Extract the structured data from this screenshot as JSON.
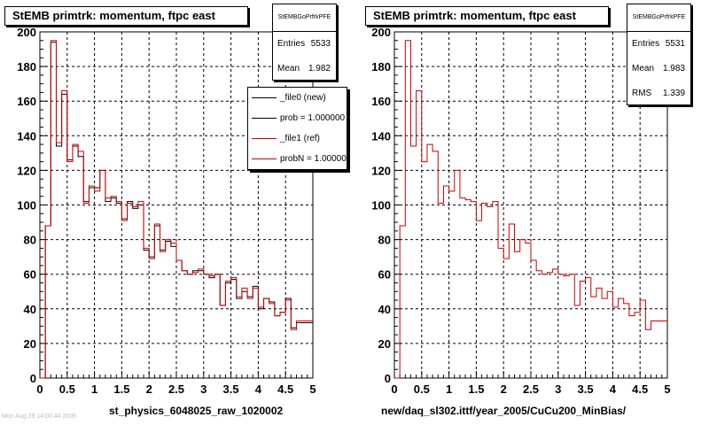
{
  "chart_data": [
    {
      "type": "histogram",
      "title": "StEMB primtrk: momentum, ftpc east",
      "xlabel": "st_physics_6048025_raw_1020002",
      "xlim": [
        0,
        5
      ],
      "ylim": [
        0,
        200
      ],
      "xticks": [
        "0",
        "0.5",
        "1",
        "1.5",
        "2",
        "2.5",
        "3",
        "3.5",
        "4",
        "4.5",
        "5"
      ],
      "yticks": [
        "0",
        "20",
        "40",
        "60",
        "80",
        "100",
        "120",
        "140",
        "160",
        "180",
        "200"
      ],
      "grid": true,
      "bin_edges": [
        0,
        0.1,
        0.2,
        0.3,
        0.4,
        0.5,
        0.6,
        0.7,
        0.8,
        0.9,
        1.0,
        1.1,
        1.2,
        1.3,
        1.4,
        1.5,
        1.6,
        1.7,
        1.8,
        1.9,
        2.0,
        2.1,
        2.2,
        2.3,
        2.4,
        2.5,
        2.6,
        2.7,
        2.8,
        2.9,
        3.0,
        3.1,
        3.2,
        3.3,
        3.4,
        3.5,
        3.6,
        3.7,
        3.8,
        3.9,
        4.0,
        4.1,
        4.2,
        4.3,
        4.4,
        4.5,
        4.6,
        4.7,
        4.8,
        4.9,
        5.0
      ],
      "series": [
        {
          "name": "_file0 (new)",
          "color": "#000000",
          "values": [
            0,
            88,
            194,
            134,
            164,
            126,
            134,
            128,
            102,
            110,
            110,
            120,
            102,
            104,
            101,
            92,
            102,
            98,
            100,
            74,
            70,
            88,
            74,
            79,
            76,
            68,
            62,
            60,
            62,
            62,
            60,
            58,
            60,
            42,
            55,
            57,
            46,
            50,
            47,
            53,
            40,
            46,
            44,
            36,
            38,
            46,
            29,
            32,
            32,
            32
          ]
        },
        {
          "name": "_file1 (ref)",
          "color": "#cc0000",
          "values": [
            0,
            88,
            195,
            136,
            166,
            125,
            135,
            131,
            101,
            111,
            108,
            120,
            104,
            105,
            102,
            91,
            101,
            99,
            102,
            75,
            69,
            89,
            73,
            80,
            78,
            68,
            62,
            60,
            61,
            63,
            60,
            59,
            60,
            42,
            56,
            58,
            47,
            52,
            46,
            52,
            41,
            46,
            43,
            36,
            38,
            45,
            28,
            33,
            33,
            33
          ]
        }
      ]
    },
    {
      "type": "histogram",
      "title": "StEMB primtrk: momentum, ftpc east",
      "xlabel": "new/daq_sl302.ittf/year_2005/CuCu200_MinBias/",
      "xlim": [
        0,
        5
      ],
      "ylim": [
        0,
        200
      ],
      "xticks": [
        "0",
        "0.5",
        "1",
        "1.5",
        "2",
        "2.5",
        "3",
        "3.5",
        "4",
        "4.5",
        "5"
      ],
      "yticks": [
        "0",
        "20",
        "40",
        "60",
        "80",
        "100",
        "120",
        "140",
        "160",
        "180",
        "200"
      ],
      "grid": true,
      "bin_edges": [
        0,
        0.1,
        0.2,
        0.3,
        0.4,
        0.5,
        0.6,
        0.7,
        0.8,
        0.9,
        1.0,
        1.1,
        1.2,
        1.3,
        1.4,
        1.5,
        1.6,
        1.7,
        1.8,
        1.9,
        2.0,
        2.1,
        2.2,
        2.3,
        2.4,
        2.5,
        2.6,
        2.7,
        2.8,
        2.9,
        3.0,
        3.1,
        3.2,
        3.3,
        3.4,
        3.5,
        3.6,
        3.7,
        3.8,
        3.9,
        4.0,
        4.1,
        4.2,
        4.3,
        4.4,
        4.5,
        4.6,
        4.7,
        4.8,
        4.9,
        5.0
      ],
      "series": [
        {
          "color": "#cc0000",
          "values": [
            0,
            88,
            195,
            134,
            166,
            125,
            135,
            131,
            101,
            111,
            108,
            120,
            104,
            103,
            102,
            91,
            101,
            99,
            102,
            75,
            69,
            89,
            73,
            80,
            78,
            68,
            62,
            60,
            61,
            63,
            60,
            59,
            60,
            42,
            56,
            58,
            47,
            52,
            46,
            50,
            41,
            46,
            43,
            36,
            38,
            45,
            28,
            33,
            33,
            33
          ]
        }
      ]
    }
  ],
  "left": {
    "title": "StEMB primtrk: momentum, ftpc east",
    "stats": {
      "name": "StEMBGoPrfrkPFE",
      "entries_label": "Entries",
      "entries_value": "5533",
      "mean_label": "Mean",
      "mean_value": "1.982"
    },
    "legend": [
      "_file0 (new)",
      "prob = 1.000000",
      "_file1 (ref)",
      "probN = 1.000000"
    ],
    "xlabel": "st_physics_6048025_raw_1020002"
  },
  "right": {
    "title": "StEMB primtrk: momentum, ftpc east",
    "stats": {
      "name": "StEMBGoPrfrkPFE",
      "entries_label": "Entries",
      "entries_value": "5531",
      "mean_label": "Mean",
      "mean_value": "1.983",
      "rms_label": "RMS",
      "rms_value": "1.339"
    },
    "xlabel": "new/daq_sl302.ittf/year_2005/CuCu200_MinBias/"
  },
  "footer": "Mon Aug 29 14:00:44 2005"
}
